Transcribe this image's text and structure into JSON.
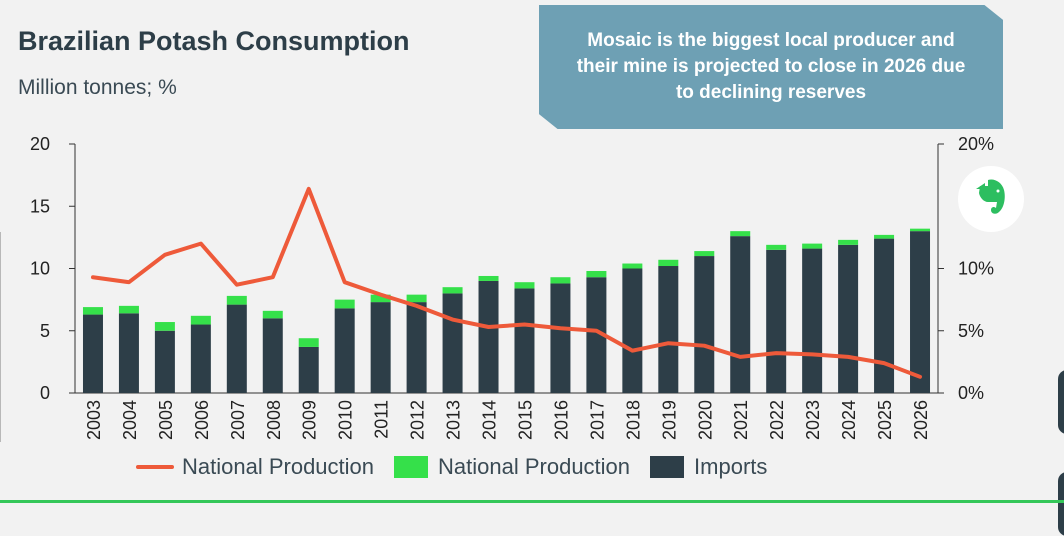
{
  "header": {
    "title": "Brazilian Potash Consumption",
    "subtitle": "Million tonnes; %"
  },
  "callout": {
    "text": "Mosaic is the biggest local producer and their mine is projected to close in 2026 due to declining reserves"
  },
  "colors": {
    "imports": "#2d3e48",
    "national_production_bar": "#35e04a",
    "national_production_line": "#ee5a3a",
    "evernote_green": "#2dbe60"
  },
  "icons": {
    "app_icon": "evernote-icon"
  },
  "chart_data": {
    "type": "bar",
    "title": "Brazilian Potash Consumption",
    "subtitle": "Million tonnes; %",
    "categories": [
      "2003",
      "2004",
      "2005",
      "2006",
      "2007",
      "2008",
      "2009",
      "2010",
      "2011",
      "2012",
      "2013",
      "2014",
      "2015",
      "2016",
      "2017",
      "2018",
      "2019",
      "2020",
      "2021",
      "2022",
      "2023",
      "2024",
      "2025",
      "2026"
    ],
    "stacked": true,
    "y_left": {
      "min": 0,
      "max": 20,
      "ticks": [
        0,
        5,
        10,
        15,
        20
      ],
      "tick_labels": [
        "0",
        "5",
        "10",
        "15",
        "20"
      ]
    },
    "y_right": {
      "min": 0,
      "max": 20,
      "ticks": [
        0,
        5,
        10,
        20
      ],
      "tick_labels": [
        "0%",
        "5%",
        "10%",
        "20%"
      ]
    },
    "series": [
      {
        "name": "Imports",
        "type": "bar",
        "axis": "left",
        "values": [
          6.3,
          6.4,
          5.0,
          5.5,
          7.1,
          6.0,
          3.7,
          6.8,
          7.3,
          7.3,
          8.0,
          9.0,
          8.4,
          8.8,
          9.3,
          10.0,
          10.2,
          11.0,
          12.6,
          11.5,
          11.6,
          11.9,
          12.4,
          13.0
        ]
      },
      {
        "name": "National Production",
        "type": "bar",
        "axis": "left",
        "values": [
          0.6,
          0.6,
          0.7,
          0.7,
          0.7,
          0.6,
          0.7,
          0.7,
          0.6,
          0.6,
          0.5,
          0.4,
          0.5,
          0.5,
          0.5,
          0.4,
          0.5,
          0.4,
          0.4,
          0.4,
          0.4,
          0.4,
          0.3,
          0.2
        ]
      },
      {
        "name": "National Production",
        "type": "line",
        "axis": "right",
        "values": [
          9.3,
          8.9,
          11.1,
          12.0,
          8.7,
          9.3,
          16.4,
          8.9,
          7.9,
          7.0,
          5.9,
          5.3,
          5.5,
          5.2,
          5.0,
          3.4,
          4.0,
          3.8,
          2.9,
          3.2,
          3.1,
          2.9,
          2.4,
          1.3
        ]
      }
    ],
    "legend": {
      "position": "bottom",
      "items": [
        {
          "label": "National Production",
          "kind": "line"
        },
        {
          "label": "National Production",
          "kind": "bar"
        },
        {
          "label": "Imports",
          "kind": "bar"
        }
      ]
    }
  }
}
